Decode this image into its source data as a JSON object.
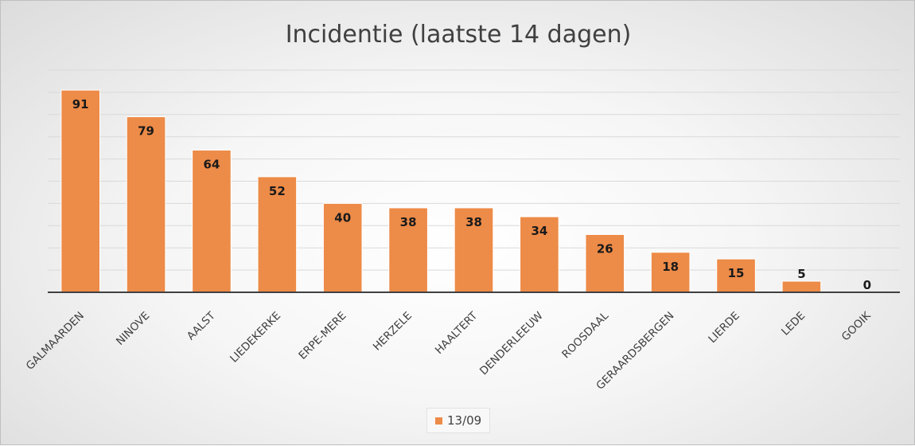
{
  "chart_data": {
    "type": "bar",
    "title": "Incidentie (laatste 14 dagen)",
    "categories": [
      "GALMAARDEN",
      "NINOVE",
      "AALST",
      "LIEDEKERKE",
      "ERPE-MERE",
      "HERZELE",
      "HAALTERT",
      "DENDERLEEUW",
      "ROOSDAAL",
      "GERAARDSBERGEN",
      "LIERDE",
      "LEDE",
      "GOOIK"
    ],
    "series": [
      {
        "name": "13/09",
        "values": [
          91,
          79,
          64,
          52,
          40,
          38,
          38,
          34,
          26,
          18,
          15,
          5,
          0
        ]
      }
    ],
    "xlabel": "",
    "ylabel": "",
    "ylim": [
      0,
      100
    ],
    "y_tick_labels_shown": false,
    "grid": true,
    "legend_position": "bottom",
    "colors": {
      "bar": "#ed8b48",
      "bar_border": "#ffffff",
      "grid": "#d9d9d9",
      "axis": "#404040"
    }
  }
}
